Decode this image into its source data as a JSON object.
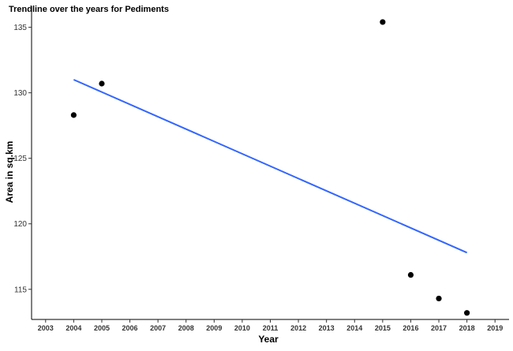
{
  "chart_data": {
    "type": "scatter",
    "title": "Trendline over the years for Pediments",
    "xlabel": "Year",
    "ylabel": "Area in sq.km",
    "xlim": [
      2002.5,
      2019.5
    ],
    "ylim": [
      112.7,
      136.6
    ],
    "x_ticks": [
      "2003",
      "2004",
      "2005",
      "2006",
      "2007",
      "2008",
      "2009",
      "2010",
      "2011",
      "2012",
      "2013",
      "2014",
      "2015",
      "2016",
      "2017",
      "2018",
      "2019"
    ],
    "y_ticks": [
      "115",
      "120",
      "125",
      "130",
      "135"
    ],
    "grid": false,
    "legend": "none",
    "series": [
      {
        "type": "scatter",
        "points": [
          {
            "x": 2004,
            "y": 128.3
          },
          {
            "x": 2005,
            "y": 130.7
          },
          {
            "x": 2015,
            "y": 135.4
          },
          {
            "x": 2016,
            "y": 116.1
          },
          {
            "x": 2017,
            "y": 114.3
          },
          {
            "x": 2018,
            "y": 113.2
          }
        ]
      },
      {
        "type": "trendline",
        "points": [
          {
            "x": 2004,
            "y": 131.0
          },
          {
            "x": 2018,
            "y": 117.8
          }
        ]
      }
    ],
    "colors": {
      "points": "#000000",
      "trendline": "#3366ff",
      "axis": "#000000"
    }
  }
}
